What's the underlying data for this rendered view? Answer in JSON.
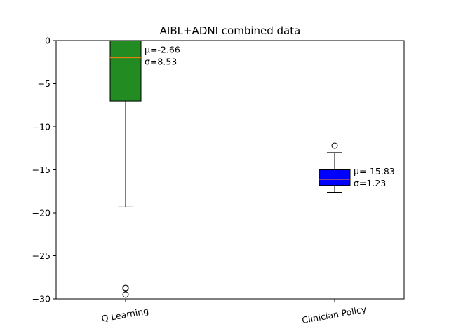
{
  "chart_data": {
    "type": "box",
    "title": "AIBL+ADNI combined data",
    "xlabel": "",
    "ylabel": "",
    "ylim": [
      -30,
      0
    ],
    "yticks": [
      0,
      -5,
      -10,
      -15,
      -20,
      -25,
      -30
    ],
    "ytick_labels": [
      "0",
      "−5",
      "−10",
      "−15",
      "−20",
      "−25",
      "−30"
    ],
    "grid": false,
    "categories": [
      "Q Learning",
      "Clinician Policy"
    ],
    "boxes": [
      {
        "name": "Q Learning",
        "color": "#228b22",
        "median": -2.0,
        "q1": -7.0,
        "q3": 0.0,
        "whisker_low": -19.3,
        "whisker_high": 0.0,
        "outliers": [
          -28.7,
          -28.8,
          -29.5
        ],
        "annotation": [
          "μ=-2.66",
          "σ=8.53"
        ]
      },
      {
        "name": "Clinician Policy",
        "color": "#0000ff",
        "median": -16.1,
        "q1": -16.8,
        "q3": -15.0,
        "whisker_low": -17.6,
        "whisker_high": -13.0,
        "outliers": [
          -12.2
        ],
        "annotation": [
          "μ=-15.83",
          "σ=1.23"
        ]
      }
    ]
  }
}
